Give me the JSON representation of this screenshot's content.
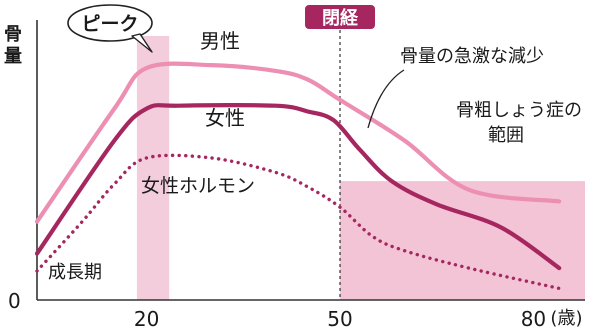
{
  "chart_data": {
    "type": "line",
    "ylabel": "骨量",
    "y_origin_label": "0",
    "x_unit": "(歳)",
    "xticks": [
      20,
      50,
      80
    ],
    "xlim": [
      3,
      88
    ],
    "ylim": [
      0,
      100
    ],
    "series": [
      {
        "name": "男性",
        "color": "#ec8fb3",
        "style": "solid",
        "points": [
          [
            3,
            27
          ],
          [
            15,
            66
          ],
          [
            20,
            80
          ],
          [
            30,
            81
          ],
          [
            40,
            79
          ],
          [
            45,
            76
          ],
          [
            50,
            69
          ],
          [
            60,
            55
          ],
          [
            70,
            38
          ],
          [
            84,
            34
          ]
        ]
      },
      {
        "name": "女性",
        "color": "#a6275f",
        "style": "solid",
        "points": [
          [
            3,
            16
          ],
          [
            15,
            55
          ],
          [
            20,
            66
          ],
          [
            25,
            67
          ],
          [
            40,
            67
          ],
          [
            45,
            65
          ],
          [
            49,
            62
          ],
          [
            53,
            52
          ],
          [
            58,
            41
          ],
          [
            65,
            33
          ],
          [
            75,
            25
          ],
          [
            84,
            11
          ]
        ]
      },
      {
        "name": "女性ホルモン",
        "color": "#a6275f",
        "style": "dotted",
        "points": [
          [
            3,
            10
          ],
          [
            10,
            27
          ],
          [
            15,
            40
          ],
          [
            20,
            49
          ],
          [
            30,
            49
          ],
          [
            40,
            44
          ],
          [
            45,
            39
          ],
          [
            50,
            32
          ],
          [
            55,
            22
          ],
          [
            60,
            17
          ],
          [
            70,
            11
          ],
          [
            84,
            4
          ]
        ]
      }
    ],
    "peak_band": {
      "from": 18.5,
      "to": 23.5,
      "label": "ピーク"
    },
    "menopause": {
      "x": 50,
      "label": "閉経"
    },
    "growth_label": "成長期",
    "osteoporosis_region": {
      "from": 50,
      "to": 88,
      "top": 41,
      "label": [
        "骨粗しょう症の",
        "範囲"
      ]
    },
    "annotation_decline": "骨量の急激な減少",
    "colors": {
      "axis": "#333333",
      "peak_band": "#f2c4d6",
      "osteo_region": "#f2c4d6",
      "menopause_badge": "#a6275f"
    }
  }
}
